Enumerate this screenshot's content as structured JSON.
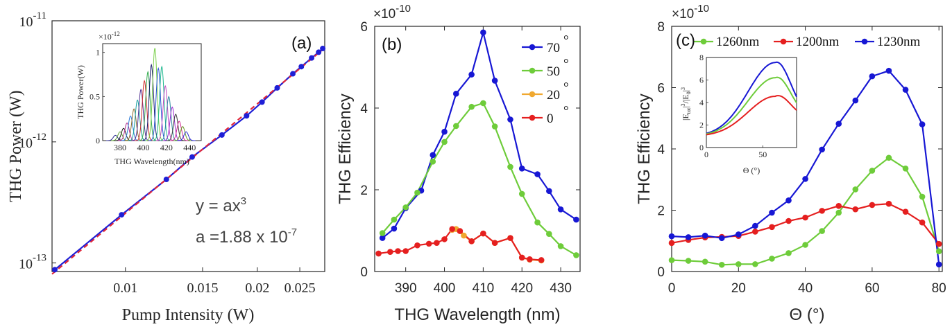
{
  "chart_data": [
    {
      "panel": "(a)",
      "type": "line",
      "xlabel": "Pump Intensity (W)",
      "ylabel": "THG Power (W)",
      "xscale": "log",
      "yscale": "log",
      "xlim": [
        0.0068,
        0.0285
      ],
      "ylim": [
        8.5e-14,
        1e-11
      ],
      "x_ticks": [
        "0.01",
        "0.015",
        "0.02",
        "0.025"
      ],
      "x_tick_values": [
        0.01,
        0.015,
        0.02,
        0.025
      ],
      "y_ticks": [
        {
          "base": "10",
          "exp": "-11",
          "value": 1e-11
        },
        {
          "base": "10",
          "exp": "-12",
          "value": 1e-12
        },
        {
          "base": "10",
          "exp": "-13",
          "value": 1e-13
        }
      ],
      "series": [
        {
          "color": "#1f1fd6",
          "marker": "circle",
          "x": [
            0.0069,
            0.0098,
            0.0124,
            0.0142,
            0.0166,
            0.0189,
            0.0205,
            0.0222,
            0.0241,
            0.0252,
            0.0266,
            0.0276,
            0.0282
          ],
          "y": [
            8.8e-14,
            2.5e-13,
            4.9e-13,
            7.5e-13,
            1.14e-12,
            1.64e-12,
            2.13e-12,
            2.79e-12,
            3.65e-12,
            4.18e-12,
            4.93e-12,
            5.5e-12,
            5.9e-12
          ]
        },
        {
          "color": "#e0263a",
          "dashed": true,
          "x": [
            0.0068,
            0.0285
          ],
          "y": [
            8.1e-14,
            5.97e-12
          ]
        }
      ],
      "annotation": {
        "line1_prefix": "y = ax",
        "line1_exp": "3",
        "line2_prefix": "a =1.88 x 10",
        "line2_exp": "-7"
      },
      "inset": {
        "xlabel": "THG Wavelength(nm)",
        "ylabel": "THG Power(W)",
        "multiplier_base": "×10",
        "multiplier_exp": "-12",
        "xlim": [
          365,
          450
        ],
        "ylim": [
          0,
          1.1
        ],
        "x_ticks": [
          "380",
          "400",
          "420",
          "440"
        ],
        "x_tick_values": [
          380,
          400,
          420,
          440
        ],
        "y_ticks": [
          "0",
          "0.5",
          "1"
        ],
        "y_tick_values": [
          0,
          0.5,
          1
        ],
        "peaks": [
          {
            "center": 376,
            "amp": 0.06,
            "color": "#2b2b8f"
          },
          {
            "center": 380,
            "amp": 0.1,
            "color": "#5aa02c"
          },
          {
            "center": 383,
            "amp": 0.14,
            "color": "#1a1a1a"
          },
          {
            "center": 386,
            "amp": 0.2,
            "color": "#b0298a"
          },
          {
            "center": 389,
            "amp": 0.28,
            "color": "#2f7ed8"
          },
          {
            "center": 392,
            "amp": 0.36,
            "color": "#8a6a2a"
          },
          {
            "center": 395,
            "amp": 0.46,
            "color": "#18a0a0"
          },
          {
            "center": 398,
            "amp": 0.58,
            "color": "#4c2a8f"
          },
          {
            "center": 401,
            "amp": 0.68,
            "color": "#d12a2a"
          },
          {
            "center": 404,
            "amp": 0.78,
            "color": "#2ea84a"
          },
          {
            "center": 407,
            "amp": 0.86,
            "color": "#1a1a6e"
          },
          {
            "center": 410,
            "amp": 1.05,
            "color": "#7ad04a"
          },
          {
            "center": 413,
            "amp": 0.82,
            "color": "#1f4fd0"
          },
          {
            "center": 416,
            "amp": 0.84,
            "color": "#20b890"
          },
          {
            "center": 419,
            "amp": 0.62,
            "color": "#c046c0"
          },
          {
            "center": 422,
            "amp": 0.5,
            "color": "#2a8aa0"
          },
          {
            "center": 425,
            "amp": 0.38,
            "color": "#9a2ad0"
          },
          {
            "center": 428,
            "amp": 0.3,
            "color": "#3a3a3a"
          },
          {
            "center": 431,
            "amp": 0.22,
            "color": "#d02a90"
          },
          {
            "center": 434,
            "amp": 0.16,
            "color": "#6a9a2a"
          },
          {
            "center": 437,
            "amp": 0.1,
            "color": "#2a2ad0"
          }
        ]
      }
    },
    {
      "panel": "(b)",
      "type": "line",
      "xlabel": "THG Wavelength (nm)",
      "ylabel": "THG Efficiency",
      "multiplier_base": "×10",
      "multiplier_exp": "-10",
      "xlim": [
        382,
        435
      ],
      "ylim": [
        0,
        6
      ],
      "x_ticks": [
        "390",
        "400",
        "410",
        "420",
        "430"
      ],
      "x_tick_values": [
        390,
        400,
        410,
        420,
        430
      ],
      "y_ticks": [
        "0",
        "2",
        "4",
        "6"
      ],
      "y_tick_values": [
        0,
        2,
        4,
        6
      ],
      "legend_position": "top-right",
      "series": [
        {
          "name": "70",
          "color": "#1717d4",
          "x": [
            384,
            387,
            390,
            394,
            397,
            400,
            403,
            407,
            410,
            413,
            417,
            420,
            424,
            427,
            430,
            434
          ],
          "y": [
            0.82,
            1.05,
            1.55,
            1.98,
            2.85,
            3.42,
            4.35,
            4.82,
            5.85,
            4.67,
            3.72,
            2.52,
            2.38,
            1.97,
            1.52,
            1.27
          ]
        },
        {
          "name": "50",
          "color": "#6ecc3a",
          "x": [
            384,
            387,
            390,
            393,
            397,
            400,
            403,
            407,
            410,
            413,
            417,
            420,
            424,
            427,
            430,
            434
          ],
          "y": [
            0.94,
            1.27,
            1.57,
            1.93,
            2.69,
            3.17,
            3.56,
            4.03,
            4.12,
            3.55,
            2.56,
            1.9,
            1.2,
            0.92,
            0.62,
            0.4
          ]
        },
        {
          "name": "20",
          "color": "#f0a830",
          "x": [
            402,
            403,
            405,
            407,
            410,
            413,
            417,
            420,
            422,
            425
          ],
          "y": [
            1.02,
            1.04,
            0.88,
            0.74,
            0.93,
            0.7,
            0.82,
            0.34,
            0.29,
            0.27
          ]
        },
        {
          "name": "0",
          "color": "#e51f1f",
          "x": [
            383,
            386,
            388,
            390,
            393,
            396,
            398,
            400,
            402,
            404,
            407,
            410,
            413,
            417,
            420,
            422,
            425
          ],
          "y": [
            0.44,
            0.48,
            0.5,
            0.5,
            0.64,
            0.68,
            0.7,
            0.79,
            1.04,
            0.99,
            0.74,
            0.93,
            0.7,
            0.82,
            0.34,
            0.3,
            0.28
          ]
        }
      ]
    },
    {
      "panel": "(c)",
      "type": "line",
      "xlabel": "Θ (°)",
      "ylabel": "THG Efficiency",
      "multiplier_base": "×10",
      "multiplier_exp": "-10",
      "xlim": [
        0,
        81
      ],
      "ylim": [
        0,
        8
      ],
      "x_ticks": [
        "0",
        "20",
        "40",
        "60",
        "80"
      ],
      "x_tick_values": [
        0,
        20,
        40,
        60,
        80
      ],
      "y_ticks": [
        "0",
        "2",
        "4",
        "6",
        "8"
      ],
      "y_tick_values": [
        0,
        2,
        4,
        6,
        8
      ],
      "legend_position": "top",
      "series": [
        {
          "name": "1260nm",
          "color": "#6ecc3a",
          "x": [
            0,
            5,
            10,
            15,
            20,
            25,
            30,
            35,
            40,
            45,
            50,
            55,
            60,
            65,
            70,
            75,
            80
          ],
          "y": [
            0.37,
            0.35,
            0.32,
            0.22,
            0.24,
            0.24,
            0.42,
            0.6,
            0.87,
            1.32,
            1.92,
            2.68,
            3.29,
            3.71,
            3.36,
            2.44,
            0.66
          ]
        },
        {
          "name": "1200nm",
          "color": "#e51f1f",
          "x": [
            0,
            5,
            10,
            15,
            20,
            25,
            30,
            35,
            40,
            45,
            50,
            55,
            60,
            65,
            70,
            75,
            80
          ],
          "y": [
            0.93,
            1.03,
            1.11,
            1.13,
            1.16,
            1.3,
            1.45,
            1.65,
            1.76,
            1.98,
            2.14,
            2.03,
            2.17,
            2.21,
            1.95,
            1.6,
            0.9
          ]
        },
        {
          "name": "1230nm",
          "color": "#1717d4",
          "x": [
            0,
            5,
            10,
            15,
            20,
            25,
            30,
            35,
            40,
            45,
            50,
            55,
            60,
            65,
            70,
            75,
            80
          ],
          "y": [
            1.15,
            1.12,
            1.17,
            1.09,
            1.21,
            1.49,
            1.92,
            2.32,
            3.02,
            3.98,
            4.82,
            5.58,
            6.37,
            6.55,
            5.93,
            4.8,
            0.23
          ]
        }
      ],
      "inset": {
        "xlabel": "Θ (°)",
        "ylabel_parts": [
          "|E",
          "tot",
          "|",
          "3",
          "/|E",
          "0",
          "|",
          "3"
        ],
        "xlim": [
          0,
          80
        ],
        "ylim": [
          0,
          8
        ],
        "x_ticks": [
          "0",
          "50"
        ],
        "x_tick_values": [
          0,
          50
        ],
        "y_ticks": [
          "0",
          "2",
          "4",
          "6",
          "8"
        ],
        "y_tick_values": [
          0,
          2,
          4,
          6,
          8
        ],
        "curves": [
          {
            "color": "#1717d4",
            "peak": 7.55
          },
          {
            "color": "#6ecc3a",
            "peak": 6.2
          },
          {
            "color": "#e51f1f",
            "peak": 4.55
          }
        ]
      }
    }
  ]
}
